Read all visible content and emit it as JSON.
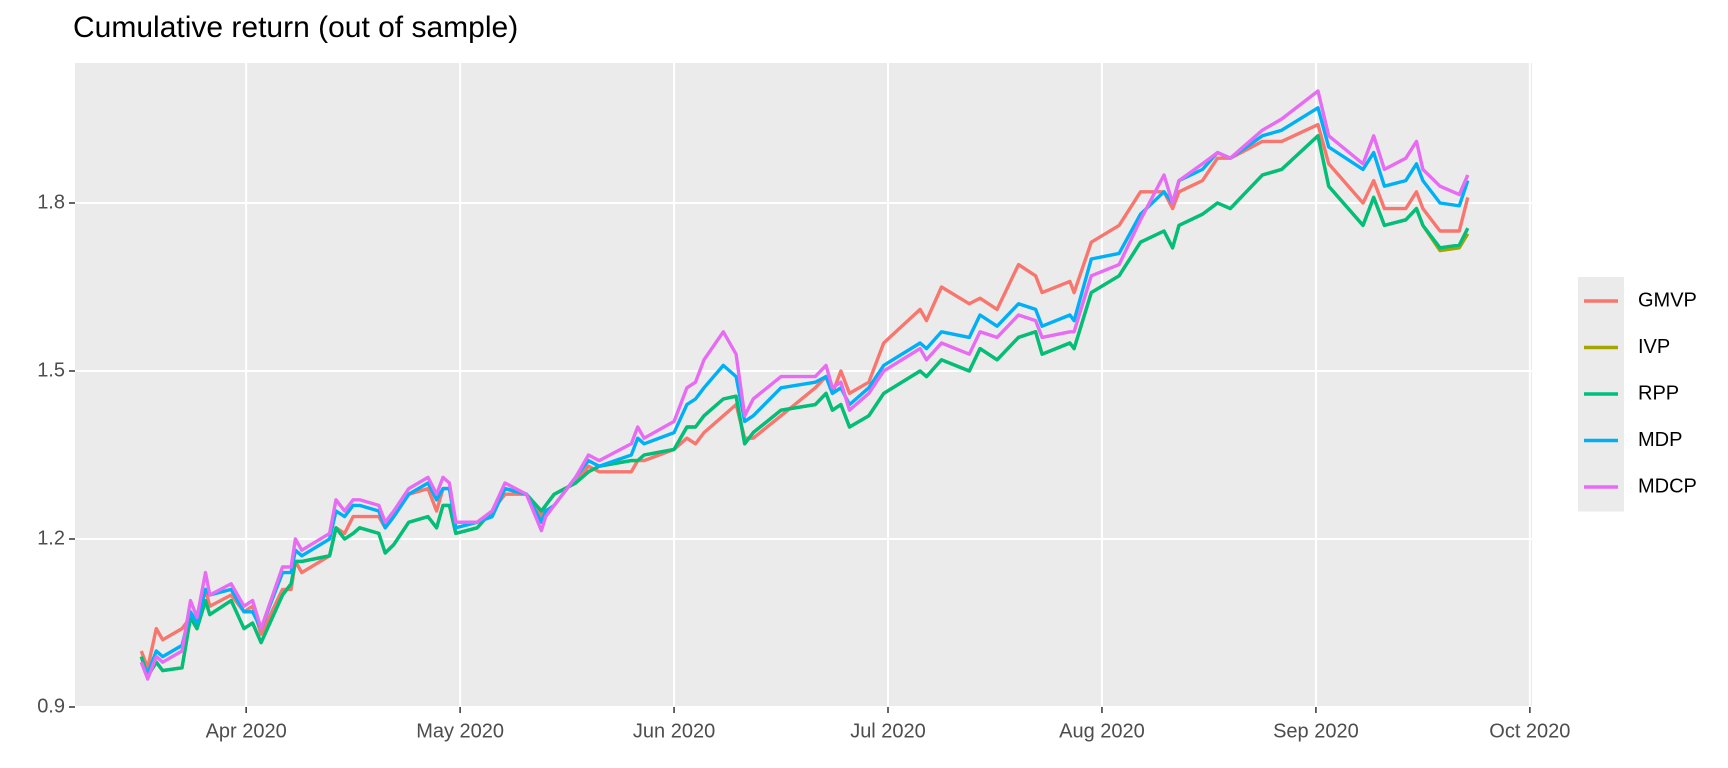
{
  "chart_data": {
    "type": "line",
    "title": "Cumulative return (out of sample)",
    "x": [
      3.51,
      3.54,
      3.58,
      3.61,
      3.7,
      3.74,
      3.77,
      3.81,
      3.83,
      3.93,
      3.99,
      4.03,
      4.07,
      4.17,
      4.21,
      4.23,
      4.26,
      4.39,
      4.42,
      4.46,
      4.5,
      4.53,
      4.62,
      4.65,
      4.69,
      4.76,
      4.85,
      4.89,
      4.92,
      4.95,
      4.98,
      5.08,
      5.15,
      5.21,
      5.31,
      5.38,
      5.4,
      5.44,
      5.54,
      5.6,
      5.65,
      5.8,
      5.83,
      5.86,
      6.0,
      6.06,
      6.1,
      6.14,
      6.23,
      6.29,
      6.33,
      6.37,
      6.5,
      6.66,
      6.71,
      6.74,
      6.78,
      6.82,
      6.91,
      6.98,
      7.15,
      7.18,
      7.25,
      7.38,
      7.43,
      7.51,
      7.61,
      7.69,
      7.72,
      7.85,
      7.87,
      7.95,
      8.08,
      8.18,
      8.29,
      8.33,
      8.36,
      8.47,
      8.54,
      8.6,
      8.75,
      8.84,
      9.01,
      9.06,
      9.22,
      9.27,
      9.32,
      9.42,
      9.47,
      9.5,
      9.58,
      9.67,
      9.71
    ],
    "series": [
      {
        "name": "GMVP",
        "color": "#F8766D",
        "values": [
          1.0,
          0.97,
          1.04,
          1.02,
          1.04,
          1.06,
          1.05,
          1.11,
          1.08,
          1.1,
          1.07,
          1.08,
          1.03,
          1.11,
          1.11,
          1.16,
          1.14,
          1.17,
          1.22,
          1.21,
          1.24,
          1.24,
          1.24,
          1.22,
          1.24,
          1.28,
          1.29,
          1.25,
          1.29,
          1.29,
          1.23,
          1.23,
          1.25,
          1.28,
          1.28,
          1.24,
          1.26,
          1.28,
          1.3,
          1.33,
          1.32,
          1.32,
          1.34,
          1.34,
          1.36,
          1.38,
          1.37,
          1.39,
          1.42,
          1.44,
          1.38,
          1.38,
          1.42,
          1.47,
          1.49,
          1.46,
          1.5,
          1.46,
          1.48,
          1.55,
          1.61,
          1.59,
          1.65,
          1.62,
          1.63,
          1.61,
          1.69,
          1.67,
          1.64,
          1.66,
          1.64,
          1.73,
          1.76,
          1.82,
          1.82,
          1.79,
          1.82,
          1.84,
          1.88,
          1.88,
          1.91,
          1.91,
          1.94,
          1.87,
          1.8,
          1.84,
          1.79,
          1.79,
          1.82,
          1.79,
          1.75,
          1.75,
          1.81
        ]
      },
      {
        "name": "IVP",
        "color": "#A3A500",
        "values": [
          0.99,
          0.955,
          0.98,
          0.965,
          0.97,
          1.06,
          1.04,
          1.09,
          1.065,
          1.09,
          1.04,
          1.05,
          1.015,
          1.1,
          1.12,
          1.16,
          1.16,
          1.17,
          1.22,
          1.2,
          1.21,
          1.22,
          1.21,
          1.175,
          1.19,
          1.23,
          1.24,
          1.22,
          1.26,
          1.26,
          1.21,
          1.22,
          1.25,
          1.29,
          1.28,
          1.25,
          1.26,
          1.28,
          1.3,
          1.32,
          1.33,
          1.34,
          1.34,
          1.35,
          1.36,
          1.4,
          1.4,
          1.42,
          1.45,
          1.455,
          1.37,
          1.39,
          1.43,
          1.44,
          1.46,
          1.43,
          1.44,
          1.4,
          1.42,
          1.46,
          1.5,
          1.49,
          1.52,
          1.5,
          1.54,
          1.52,
          1.56,
          1.57,
          1.53,
          1.55,
          1.54,
          1.64,
          1.67,
          1.73,
          1.75,
          1.72,
          1.76,
          1.78,
          1.8,
          1.79,
          1.85,
          1.86,
          1.92,
          1.83,
          1.76,
          1.81,
          1.76,
          1.77,
          1.79,
          1.76,
          1.715,
          1.72,
          1.745
        ]
      },
      {
        "name": "RPP",
        "color": "#00BF7D",
        "values": [
          0.99,
          0.955,
          0.98,
          0.965,
          0.97,
          1.06,
          1.04,
          1.09,
          1.065,
          1.09,
          1.04,
          1.05,
          1.015,
          1.1,
          1.12,
          1.16,
          1.16,
          1.17,
          1.22,
          1.2,
          1.21,
          1.22,
          1.21,
          1.175,
          1.19,
          1.23,
          1.24,
          1.22,
          1.26,
          1.26,
          1.21,
          1.22,
          1.25,
          1.29,
          1.28,
          1.25,
          1.26,
          1.28,
          1.3,
          1.32,
          1.33,
          1.34,
          1.34,
          1.35,
          1.36,
          1.4,
          1.4,
          1.42,
          1.45,
          1.455,
          1.37,
          1.39,
          1.43,
          1.44,
          1.46,
          1.43,
          1.44,
          1.4,
          1.42,
          1.46,
          1.5,
          1.49,
          1.52,
          1.5,
          1.54,
          1.52,
          1.56,
          1.57,
          1.53,
          1.55,
          1.54,
          1.64,
          1.67,
          1.73,
          1.75,
          1.72,
          1.76,
          1.78,
          1.8,
          1.79,
          1.85,
          1.86,
          1.92,
          1.83,
          1.76,
          1.81,
          1.76,
          1.77,
          1.79,
          1.76,
          1.72,
          1.725,
          1.755
        ]
      },
      {
        "name": "MDP",
        "color": "#00B0F6",
        "values": [
          0.98,
          0.96,
          1.0,
          0.99,
          1.01,
          1.07,
          1.05,
          1.11,
          1.1,
          1.11,
          1.07,
          1.07,
          1.04,
          1.14,
          1.14,
          1.18,
          1.17,
          1.2,
          1.25,
          1.24,
          1.26,
          1.26,
          1.25,
          1.22,
          1.24,
          1.28,
          1.3,
          1.27,
          1.29,
          1.29,
          1.22,
          1.23,
          1.24,
          1.29,
          1.28,
          1.23,
          1.25,
          1.26,
          1.31,
          1.34,
          1.33,
          1.35,
          1.38,
          1.37,
          1.39,
          1.44,
          1.45,
          1.47,
          1.51,
          1.49,
          1.41,
          1.42,
          1.47,
          1.48,
          1.49,
          1.46,
          1.47,
          1.44,
          1.47,
          1.51,
          1.55,
          1.54,
          1.57,
          1.56,
          1.6,
          1.58,
          1.62,
          1.61,
          1.58,
          1.6,
          1.59,
          1.7,
          1.71,
          1.78,
          1.82,
          1.8,
          1.84,
          1.86,
          1.89,
          1.88,
          1.92,
          1.93,
          1.97,
          1.9,
          1.86,
          1.89,
          1.83,
          1.84,
          1.87,
          1.84,
          1.8,
          1.795,
          1.84
        ]
      },
      {
        "name": "MDCP",
        "color": "#E76BF3",
        "values": [
          0.98,
          0.95,
          0.99,
          0.98,
          1.0,
          1.09,
          1.06,
          1.14,
          1.1,
          1.12,
          1.08,
          1.09,
          1.04,
          1.15,
          1.15,
          1.2,
          1.18,
          1.21,
          1.27,
          1.25,
          1.27,
          1.27,
          1.26,
          1.23,
          1.25,
          1.29,
          1.31,
          1.28,
          1.31,
          1.3,
          1.23,
          1.23,
          1.25,
          1.3,
          1.28,
          1.215,
          1.24,
          1.26,
          1.31,
          1.35,
          1.34,
          1.37,
          1.4,
          1.38,
          1.41,
          1.47,
          1.48,
          1.52,
          1.57,
          1.53,
          1.42,
          1.45,
          1.49,
          1.49,
          1.51,
          1.47,
          1.48,
          1.43,
          1.46,
          1.5,
          1.54,
          1.52,
          1.55,
          1.53,
          1.57,
          1.56,
          1.6,
          1.59,
          1.56,
          1.57,
          1.57,
          1.67,
          1.69,
          1.77,
          1.85,
          1.8,
          1.84,
          1.87,
          1.89,
          1.88,
          1.93,
          1.95,
          2.0,
          1.92,
          1.87,
          1.92,
          1.86,
          1.88,
          1.91,
          1.86,
          1.83,
          1.815,
          1.85
        ]
      }
    ],
    "xlim": [
      3.2,
      10.01
    ],
    "xticks": [
      {
        "value": 4,
        "label": "Apr 2020"
      },
      {
        "value": 5,
        "label": "May 2020"
      },
      {
        "value": 6,
        "label": "Jun 2020"
      },
      {
        "value": 7,
        "label": "Jul 2020"
      },
      {
        "value": 8,
        "label": "Aug 2020"
      },
      {
        "value": 9,
        "label": "Sep 2020"
      },
      {
        "value": 10,
        "label": "Oct 2020"
      }
    ],
    "ylim": [
      0.9,
      2.05
    ],
    "yticks": [
      0.9,
      1.2,
      1.5,
      1.8
    ],
    "grid": true,
    "legend": "right"
  }
}
